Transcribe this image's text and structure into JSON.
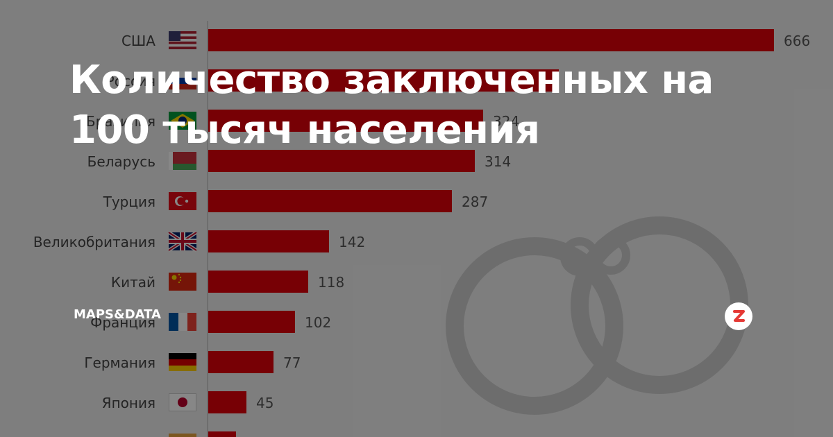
{
  "article": {
    "title": "Количество заключенных на 100 тысяч населения",
    "source": "MAPS&DATA"
  },
  "colors": {
    "bar": "#e1000a",
    "background": "#efefef",
    "overlay": "rgba(0,0,0,0.47)"
  },
  "icons": {
    "logo": "zen-logo-icon",
    "decoration": "handcuffs-icon"
  },
  "chart_data": {
    "type": "bar",
    "orientation": "horizontal",
    "categories": [
      "США",
      "Россия",
      "Бразилия",
      "Беларусь",
      "Турция",
      "Великобритания",
      "Китай",
      "Франция",
      "Германия",
      "Япония",
      ""
    ],
    "flags": [
      "flag-usa-icon",
      "flag-russia-icon",
      "flag-brazil-icon",
      "flag-belarus-icon",
      "flag-turkey-icon",
      "flag-uk-icon",
      "flag-china-icon",
      "flag-france-icon",
      "flag-germany-icon",
      "flag-japan-icon",
      "flag-partial-icon"
    ],
    "values": [
      666,
      413,
      324,
      314,
      287,
      142,
      118,
      102,
      77,
      45,
      33
    ],
    "value_labels": [
      "666",
      "",
      "324",
      "314",
      "287",
      "142",
      "118",
      "102",
      "77",
      "45",
      ""
    ],
    "xlim": [
      0,
      666
    ],
    "grid": false,
    "legend": "none"
  }
}
